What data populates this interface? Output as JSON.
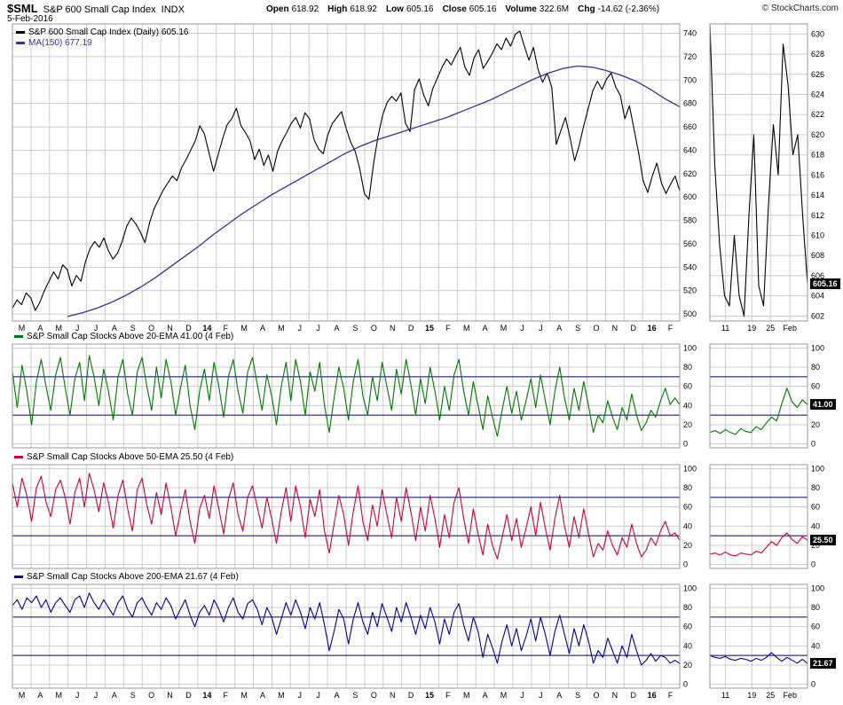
{
  "header": {
    "symbol": "$SML",
    "title": "S&P 600 Small Cap Index",
    "exchange": "INDX",
    "date": "5-Feb-2016",
    "credit": "© StockCharts.com",
    "quote": [
      {
        "label": "Open",
        "value": "618.92"
      },
      {
        "label": "High",
        "value": "618.92"
      },
      {
        "label": "Low",
        "value": "605.16"
      },
      {
        "label": "Close",
        "value": "605.16"
      },
      {
        "label": "Volume",
        "value": "322.6M"
      },
      {
        "label": "Chg",
        "value": "-14.62 (-2.36%)"
      }
    ]
  },
  "colors": {
    "price": "#000000",
    "ma": "#333399",
    "above20": "#007700",
    "above50": "#cc0033",
    "above200": "#000099",
    "ref": "#000066",
    "grid": "#cccccc",
    "border": "#999999",
    "label_box_bg": "#000000",
    "label_box_fg": "#ffffff"
  },
  "x_axis": {
    "labels": [
      "M",
      "A",
      "M",
      "J",
      "J",
      "A",
      "S",
      "O",
      "N",
      "D",
      "14",
      "F",
      "M",
      "A",
      "M",
      "J",
      "J",
      "A",
      "S",
      "O",
      "N",
      "D",
      "15",
      "F",
      "M",
      "A",
      "M",
      "J",
      "J",
      "A",
      "S",
      "O",
      "N",
      "D",
      "16",
      "F"
    ],
    "year_indices": [
      10,
      22,
      34
    ]
  },
  "mini_x_labels": [
    "11",
    "19",
    "25",
    "Feb"
  ],
  "chart_data": [
    {
      "type": "line",
      "title": "S&P 600 Small Cap Index (Daily)",
      "legend": [
        {
          "label": "S&P 600 Small Cap Index (Daily) 605.16",
          "color": "#000000"
        },
        {
          "label": "MA(150) 677.19",
          "color": "#333399"
        }
      ],
      "ylim": [
        494,
        748
      ],
      "yticks": {
        "from": 500,
        "to": 740,
        "step": 20
      },
      "ref_lines": [],
      "series": [
        {
          "name": "price",
          "color": "#000000",
          "values": [
            505,
            512,
            508,
            518,
            514,
            503,
            510,
            520,
            528,
            536,
            530,
            542,
            538,
            524,
            533,
            528,
            545,
            556,
            562,
            557,
            565,
            554,
            547,
            552,
            562,
            575,
            582,
            577,
            570,
            561,
            578,
            590,
            598,
            606,
            612,
            618,
            614,
            625,
            632,
            640,
            648,
            661,
            654,
            638,
            622,
            636,
            650,
            662,
            667,
            676,
            661,
            655,
            648,
            632,
            641,
            627,
            636,
            622,
            639,
            648,
            655,
            663,
            668,
            659,
            672,
            667,
            649,
            641,
            637,
            653,
            663,
            668,
            673,
            659,
            647,
            639,
            624,
            603,
            598,
            628,
            652,
            670,
            681,
            686,
            682,
            689,
            663,
            656,
            692,
            701,
            687,
            678,
            693,
            702,
            711,
            718,
            713,
            721,
            728,
            711,
            704,
            719,
            726,
            710,
            716,
            723,
            731,
            726,
            736,
            729,
            739,
            742,
            729,
            717,
            728,
            709,
            698,
            706,
            694,
            645,
            657,
            668,
            651,
            631,
            644,
            661,
            676,
            691,
            699,
            692,
            701,
            706,
            694,
            687,
            667,
            678,
            658,
            638,
            614,
            604,
            618,
            629,
            612,
            603,
            611,
            618,
            605.16
          ]
        },
        {
          "name": "ma150",
          "color": "#333399",
          "x_start": 0.083,
          "values": [
            498,
            501,
            505,
            510,
            516,
            523,
            531,
            540,
            549,
            558,
            568,
            577,
            586,
            594,
            602,
            609,
            616,
            623,
            630,
            637,
            643,
            648,
            652,
            656,
            660,
            664,
            668,
            673,
            678,
            683,
            689,
            695,
            701,
            706,
            710,
            712,
            711,
            708,
            704,
            699,
            692,
            684,
            677.19
          ]
        }
      ],
      "mini": {
        "ylim": [
          601.5,
          631
        ],
        "yticks": {
          "from": 602,
          "to": 630,
          "step": 2
        },
        "last_label": "605.16",
        "values": [
          631,
          617,
          609,
          604,
          603,
          610,
          604,
          602,
          612,
          620,
          605,
          603,
          613,
          621,
          616,
          629,
          625,
          618,
          620,
          612,
          605.16
        ]
      }
    },
    {
      "type": "line",
      "title": "S&P Small Cap Stocks Above 20-EMA",
      "legend_label": "S&P Small Cap Stocks Above 20-EMA 41.00 (4 Feb)",
      "color": "#007700",
      "ylim": [
        -4,
        104
      ],
      "yticks": {
        "from": 0,
        "to": 100,
        "step": 20
      },
      "ref_lines": [
        30,
        70
      ],
      "values": [
        75,
        38,
        82,
        55,
        20,
        65,
        88,
        60,
        35,
        72,
        90,
        58,
        30,
        68,
        85,
        45,
        92,
        70,
        40,
        78,
        55,
        25,
        70,
        88,
        52,
        30,
        75,
        90,
        60,
        35,
        80,
        48,
        88,
        65,
        30,
        58,
        82,
        40,
        15,
        55,
        78,
        45,
        85,
        60,
        28,
        70,
        88,
        55,
        32,
        75,
        90,
        62,
        35,
        72,
        50,
        20,
        60,
        85,
        45,
        88,
        65,
        30,
        75,
        55,
        85,
        40,
        12,
        48,
        80,
        58,
        25,
        65,
        88,
        50,
        30,
        70,
        45,
        85,
        60,
        35,
        78,
        52,
        88,
        62,
        30,
        68,
        42,
        80,
        55,
        25,
        60,
        35,
        72,
        88,
        55,
        30,
        65,
        40,
        15,
        50,
        28,
        8,
        35,
        60,
        32,
        55,
        25,
        45,
        68,
        38,
        72,
        45,
        20,
        55,
        80,
        48,
        25,
        58,
        35,
        65,
        40,
        12,
        30,
        22,
        45,
        28,
        15,
        38,
        25,
        52,
        30,
        14,
        22,
        35,
        28,
        45,
        58,
        41,
        48,
        41
      ],
      "mini": {
        "ylim": [
          -4,
          104
        ],
        "yticks": {
          "from": 0,
          "to": 100,
          "step": 20
        },
        "last_label": "41.00",
        "values": [
          12,
          14,
          11,
          15,
          12,
          10,
          16,
          13,
          12,
          18,
          15,
          22,
          28,
          24,
          42,
          58,
          44,
          38,
          46,
          41
        ]
      }
    },
    {
      "type": "line",
      "title": "S&P Small Cap Stocks Above 50-EMA",
      "legend_label": "S&P Small Cap Stocks Above 50-EMA 25.50 (4 Feb)",
      "color": "#cc0033",
      "ylim": [
        -4,
        104
      ],
      "yticks": {
        "from": 0,
        "to": 100,
        "step": 20
      },
      "ref_lines": [
        30,
        70
      ],
      "values": [
        85,
        60,
        90,
        72,
        45,
        80,
        92,
        65,
        50,
        78,
        88,
        70,
        42,
        75,
        90,
        60,
        95,
        78,
        55,
        85,
        65,
        38,
        72,
        88,
        58,
        35,
        78,
        90,
        62,
        42,
        75,
        52,
        85,
        60,
        30,
        55,
        78,
        45,
        22,
        58,
        72,
        48,
        82,
        58,
        32,
        68,
        85,
        52,
        35,
        70,
        82,
        60,
        38,
        70,
        48,
        22,
        55,
        80,
        45,
        82,
        60,
        28,
        68,
        50,
        78,
        35,
        12,
        42,
        72,
        52,
        20,
        55,
        82,
        45,
        25,
        62,
        40,
        78,
        52,
        28,
        70,
        45,
        80,
        55,
        25,
        60,
        35,
        72,
        48,
        18,
        52,
        28,
        65,
        80,
        48,
        22,
        58,
        32,
        10,
        42,
        20,
        6,
        28,
        52,
        25,
        48,
        18,
        38,
        60,
        30,
        65,
        38,
        15,
        48,
        72,
        40,
        18,
        50,
        28,
        58,
        32,
        8,
        22,
        15,
        35,
        20,
        10,
        28,
        18,
        42,
        22,
        8,
        15,
        28,
        20,
        35,
        45,
        30,
        33,
        25.5
      ],
      "mini": {
        "ylim": [
          -4,
          104
        ],
        "yticks": {
          "from": 0,
          "to": 100,
          "step": 20
        },
        "last_label": "25.50",
        "values": [
          11,
          12,
          10,
          13,
          10,
          9,
          12,
          11,
          10,
          14,
          12,
          18,
          24,
          20,
          28,
          33,
          26,
          22,
          29,
          25.5
        ]
      }
    },
    {
      "type": "line",
      "title": "S&P Small Cap Stocks Above 200-EMA",
      "legend_label": "S&P Small Cap Stocks Above 200-EMA 21.67 (4 Feb)",
      "color": "#000099",
      "ylim": [
        -4,
        104
      ],
      "yticks": {
        "from": 0,
        "to": 100,
        "step": 20
      },
      "ref_lines": [
        30,
        70
      ],
      "values": [
        82,
        88,
        78,
        90,
        85,
        92,
        80,
        88,
        75,
        85,
        90,
        82,
        75,
        88,
        92,
        80,
        95,
        85,
        78,
        88,
        80,
        72,
        85,
        92,
        78,
        70,
        85,
        90,
        80,
        72,
        85,
        78,
        90,
        82,
        68,
        78,
        88,
        72,
        60,
        75,
        82,
        72,
        88,
        78,
        65,
        80,
        90,
        75,
        68,
        84,
        88,
        78,
        62,
        80,
        70,
        52,
        68,
        85,
        72,
        88,
        75,
        58,
        80,
        68,
        85,
        62,
        35,
        55,
        78,
        68,
        42,
        68,
        85,
        65,
        52,
        75,
        60,
        84,
        70,
        55,
        80,
        65,
        85,
        70,
        52,
        72,
        58,
        80,
        65,
        42,
        68,
        52,
        75,
        84,
        62,
        45,
        70,
        55,
        28,
        52,
        38,
        22,
        45,
        62,
        40,
        58,
        35,
        50,
        68,
        45,
        70,
        52,
        30,
        55,
        72,
        52,
        32,
        58,
        40,
        62,
        45,
        22,
        35,
        28,
        48,
        35,
        22,
        40,
        28,
        52,
        35,
        20,
        25,
        32,
        24,
        30,
        28,
        22,
        25,
        21.67
      ],
      "mini": {
        "ylim": [
          -4,
          104
        ],
        "yticks": {
          "from": 0,
          "to": 100,
          "step": 20
        },
        "last_label": "21.67",
        "values": [
          30,
          28,
          27,
          29,
          26,
          25,
          27,
          26,
          24,
          27,
          25,
          28,
          33,
          28,
          24,
          28,
          25,
          22,
          26,
          21.67
        ]
      }
    }
  ]
}
